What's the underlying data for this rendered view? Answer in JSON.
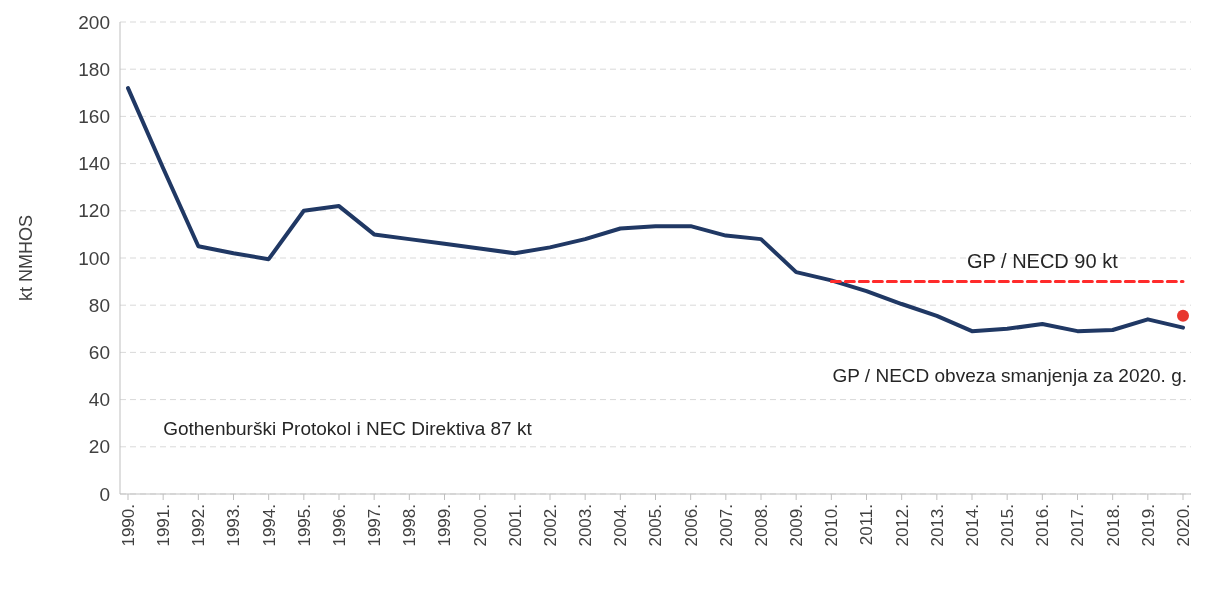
{
  "chart_data": {
    "type": "line",
    "ylabel": "kt NMHOS",
    "categories": [
      "1990.",
      "1991.",
      "1992.",
      "1993.",
      "1994.",
      "1995.",
      "1996.",
      "1997.",
      "1998.",
      "1999.",
      "2000.",
      "2001.",
      "2002.",
      "2003.",
      "2004.",
      "2005.",
      "2006.",
      "2007.",
      "2008.",
      "2009.",
      "2010.",
      "2011.",
      "2012.",
      "2013.",
      "2014.",
      "2015.",
      "2016.",
      "2017.",
      "2018.",
      "2019.",
      "2020."
    ],
    "series": [
      {
        "color": "#203864",
        "values": [
          172,
          138,
          105,
          102,
          99.5,
          120,
          122,
          110,
          108,
          106,
          104,
          102,
          104.5,
          108,
          112.5,
          113.5,
          113.5,
          109.5,
          108,
          94,
          90.5,
          86,
          80.5,
          75.5,
          69,
          70,
          72,
          69,
          69.5,
          74,
          70.5
        ]
      },
      {
        "type": "line",
        "color": "#ff2b2b",
        "line_style": "dashed",
        "values": [
          null,
          null,
          null,
          null,
          null,
          null,
          null,
          null,
          null,
          null,
          null,
          null,
          null,
          null,
          null,
          null,
          null,
          null,
          null,
          null,
          90,
          90,
          90,
          90,
          90,
          90,
          90,
          90,
          90,
          90,
          90
        ]
      },
      {
        "type": "scatter",
        "color": "#e8372f",
        "marker": "circle",
        "values": [
          null,
          null,
          null,
          null,
          null,
          null,
          null,
          null,
          null,
          null,
          null,
          null,
          null,
          null,
          null,
          null,
          null,
          null,
          null,
          null,
          null,
          null,
          null,
          null,
          null,
          null,
          null,
          null,
          null,
          null,
          75.5
        ]
      }
    ],
    "ylim": [
      0,
      200
    ],
    "yticks": [
      0,
      20,
      40,
      60,
      80,
      100,
      120,
      140,
      160,
      180,
      200
    ],
    "grid": "y",
    "annotations": [
      "GP / NECD 90 kt",
      "GP / NECD obveza smanjenja za 2020. g.",
      "Gothenburški Protokol i NEC Direktiva 87 kt"
    ]
  }
}
